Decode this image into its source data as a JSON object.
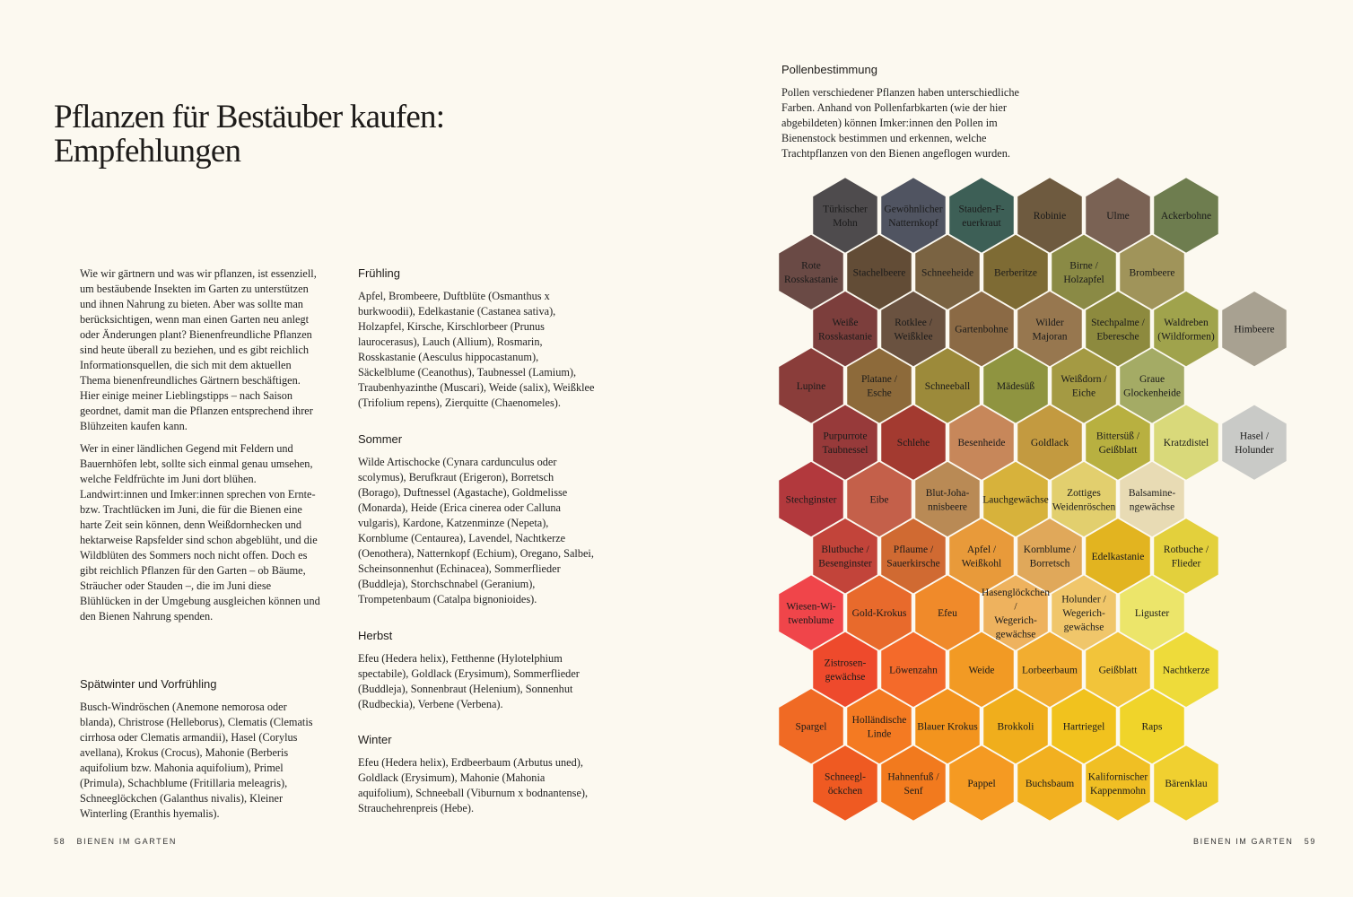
{
  "left_page": {
    "title": "Pflanzen für Bestäuber kaufen:\nEmpfehlungen",
    "intro_paragraphs": [
      "Wie wir gärtnern und was wir pflanzen, ist essenziell, um bestäubende Insekten im Garten zu unterstützen und ihnen Nahrung zu bieten. Aber was sollte man berücksichtigen, wenn man einen Garten neu anlegt oder Änderungen plant? Bienenfreundliche Pflanzen sind heute überall zu beziehen, und es gibt reichlich Informationsquellen, die sich mit dem aktuellen Thema bienenfreundliches Gärtnern beschäftigen. Hier einige meiner Lieblingstipps – nach Saison geordnet, damit man die Pflanzen entsprechend ihrer Blühzeiten kaufen kann.",
      "Wer in einer ländlichen Gegend mit Feldern und Bauernhöfen lebt, sollte sich einmal genau umsehen, welche Feldfrüchte im Juni dort blühen. Landwirt:innen und Imker:innen sprechen von Ernte- bzw. Trachtlücken im Juni, die für die Bienen eine harte Zeit sein können, denn Weißdornhecken und hektarweise Rapsfelder sind schon abgeblüht, und die Wildblüten des Sommers noch nicht offen. Doch es gibt reichlich Pflanzen für den Garten – ob Bäume, Sträucher oder Stauden –, die im Juni diese Blühlücken in der Umgebung ausgleichen können und den Bienen Nahrung spenden."
    ],
    "seasons": {
      "late_winter": {
        "heading": "Spätwinter und Vorfrühling",
        "text": "Busch-Windröschen (Anemone nemorosa oder blanda), Christrose (Helleborus), Clematis (Clematis cirrhosa oder Clematis armandii), Hasel (Corylus avellana), Krokus (Crocus), Mahonie (Berberis aquifolium bzw. Mahonia aquifolium), Primel (Primula), Schachblume (Fritillaria meleagris), Schneeglöckchen (Galanthus nivalis), Kleiner Winterling (Eranthis hyemalis)."
      },
      "spring": {
        "heading": "Frühling",
        "text": "Apfel, Brombeere, Duftblüte (Osmanthus x burkwoodii), Edelkastanie (Castanea sativa), Holzapfel, Kirsche, Kirschlorbeer (Prunus laurocerasus), Lauch (Allium), Rosmarin, Rosskastanie (Aesculus hippocastanum), Säckelblume (Ceanothus), Taubnessel (Lamium), Traubenhyazinthe (Muscari), Weide (salix), Weißklee (Trifolium repens), Zierquitte (Chaenomeles)."
      },
      "summer": {
        "heading": "Sommer",
        "text": "Wilde Artischocke (Cynara cardunculus oder scolymus), Berufkraut (Erigeron), Borretsch (Borago), Duftnessel (Agastache), Goldmelisse (Monarda), Heide (Erica cinerea oder Calluna vulgaris), Kardone, Katzenminze (Nepeta), Kornblume (Centaurea), Lavendel, Nachtkerze (Oenothera), Natternkopf (Echium), Oregano, Salbei, Scheinsonnenhut (Echinacea), Sommerflieder (Buddleja), Storchschnabel (Geranium), Trompetenbaum (Catalpa bignonioides)."
      },
      "autumn": {
        "heading": "Herbst",
        "text": "Efeu (Hedera helix), Fetthenne (Hylotelphium spectabile), Goldlack (Erysimum), Sommerflieder (Buddleja), Sonnenbraut (Helenium), Sonnenhut (Rudbeckia), Verbene (Verbena)."
      },
      "winter": {
        "heading": "Winter",
        "text": "Efeu (Hedera helix), Erdbeerbaum (Arbutus uned), Goldlack (Erysimum), Mahonie (Mahonia aquifolium), Schneeball (Viburnum x bodnantense), Strauchehrenpreis (Hebe)."
      }
    },
    "footer_number": "58",
    "footer_label": "BIENEN IM GARTEN"
  },
  "right_page": {
    "heading": "Pollenbestimmung",
    "text": "Pollen verschiedener Pflanzen haben unterschiedliche Farben. Anhand von Pollenfarbkarten (wie der hier abgebildeten) können Imker:innen den Pollen im Bienenstock bestimmen und erkennen, welche Trachtpflanzen von den Bienen angeflogen wurden.",
    "footer_label": "BIENEN IM GARTEN",
    "footer_number": "59",
    "hex_rows": [
      {
        "indent": 1,
        "cells": [
          {
            "label": "Türkischer Mohn",
            "color": "#4e4b4d",
            "text_color": "#1a1a1a"
          },
          {
            "label": "Gewöhnlicher Natternkopf",
            "color": "#505461",
            "text_color": "#1a1a1a"
          },
          {
            "label": "Stauden-Feuerkraut",
            "color": "#3d5f56",
            "text_color": "#1a1a1a"
          },
          {
            "label": "Robinie",
            "color": "#6e5a3f",
            "text_color": "#1a1a1a"
          },
          {
            "label": "Ulme",
            "color": "#7a6254",
            "text_color": "#1a1a1a"
          },
          {
            "label": "Ackerbohne",
            "color": "#6e7d4f",
            "text_color": "#1a1a1a"
          }
        ]
      },
      {
        "indent": 0,
        "cells": [
          {
            "label": "Rote Rosskastanie",
            "color": "#6a4a45",
            "text_color": "#1a1a1a"
          },
          {
            "label": "Stachelbeere",
            "color": "#624c36",
            "text_color": "#1a1a1a"
          },
          {
            "label": "Schneeheide",
            "color": "#7a6342",
            "text_color": "#1a1a1a"
          },
          {
            "label": "Berberitze",
            "color": "#7e6b34",
            "text_color": "#1a1a1a"
          },
          {
            "label": "Birne / Holzapfel",
            "color": "#8a8a45",
            "text_color": "#1a1a1a"
          },
          {
            "label": "Brombeere",
            "color": "#a0945a",
            "text_color": "#1a1a1a"
          }
        ]
      },
      {
        "indent": 1,
        "cells": [
          {
            "label": "Weiße Rosskastanie",
            "color": "#7c3e3c",
            "text_color": "#1a1a1a"
          },
          {
            "label": "Rotklee / Weißklee",
            "color": "#6a5240",
            "text_color": "#1a1a1a"
          },
          {
            "label": "Gartenbohne",
            "color": "#8b6a45",
            "text_color": "#1a1a1a"
          },
          {
            "label": "Wilder Majoran",
            "color": "#97774f",
            "text_color": "#1a1a1a"
          },
          {
            "label": "Stechpalme / Eberesche",
            "color": "#8d8a3e",
            "text_color": "#1a1a1a"
          },
          {
            "label": "Waldreben (Wildformen)",
            "color": "#a0a34c",
            "text_color": "#1a1a1a"
          },
          {
            "label": "Himbeere",
            "color": "#a8a191",
            "text_color": "#1a1a1a"
          }
        ]
      },
      {
        "indent": 0,
        "cells": [
          {
            "label": "Lupine",
            "color": "#8a3d3a",
            "text_color": "#1a1a1a"
          },
          {
            "label": "Platane / Esche",
            "color": "#8d6a3a",
            "text_color": "#1a1a1a"
          },
          {
            "label": "Schneeball",
            "color": "#9c8a3a",
            "text_color": "#1a1a1a"
          },
          {
            "label": "Mädesüß",
            "color": "#8f9440",
            "text_color": "#1a1a1a"
          },
          {
            "label": "Weißdorn / Eiche",
            "color": "#a49a43",
            "text_color": "#1a1a1a"
          },
          {
            "label": "Graue Glockenheide",
            "color": "#a4ab65",
            "text_color": "#1a1a1a"
          }
        ]
      },
      {
        "indent": 1,
        "cells": [
          {
            "label": "Purpurrote Taubnessel",
            "color": "#973a3a",
            "text_color": "#1a1a1a"
          },
          {
            "label": "Schlehe",
            "color": "#a33a30",
            "text_color": "#1a1a1a"
          },
          {
            "label": "Besenheide",
            "color": "#c7875a",
            "text_color": "#1a1a1a"
          },
          {
            "label": "Goldlack",
            "color": "#c39a40",
            "text_color": "#1a1a1a"
          },
          {
            "label": "Bittersüß / Geißblatt",
            "color": "#b8b040",
            "text_color": "#1a1a1a"
          },
          {
            "label": "Kratzdistel",
            "color": "#d9d97a",
            "text_color": "#1a1a1a"
          },
          {
            "label": "Hasel / Holunder",
            "color": "#c9cac7",
            "text_color": "#1a1a1a"
          }
        ]
      },
      {
        "indent": 0,
        "cells": [
          {
            "label": "Stechginster",
            "color": "#b2393d",
            "text_color": "#1a1a1a"
          },
          {
            "label": "Eibe",
            "color": "#c4604a",
            "text_color": "#1a1a1a"
          },
          {
            "label": "Blut-Johannisbeere",
            "color": "#b98a55",
            "text_color": "#1a1a1a"
          },
          {
            "label": "Lauchgewächse",
            "color": "#d7b23b",
            "text_color": "#1a1a1a"
          },
          {
            "label": "Zottiges Weidenröschen",
            "color": "#e2cf6e",
            "text_color": "#1a1a1a"
          },
          {
            "label": "Balsaminengewächse",
            "color": "#e8dbb4",
            "text_color": "#1a1a1a"
          }
        ]
      },
      {
        "indent": 1,
        "cells": [
          {
            "label": "Blutbuche / Besenginster",
            "color": "#c2443a",
            "text_color": "#1a1a1a"
          },
          {
            "label": "Pflaume / Sauerkirsche",
            "color": "#d06a32",
            "text_color": "#1a1a1a"
          },
          {
            "label": "Apfel / Weißkohl",
            "color": "#e89a3a",
            "text_color": "#1a1a1a"
          },
          {
            "label": "Kornblume / Borretsch",
            "color": "#e0a85a",
            "text_color": "#1a1a1a"
          },
          {
            "label": "Edelkastanie",
            "color": "#e2b420",
            "text_color": "#1a1a1a"
          },
          {
            "label": "Rotbuche / Flieder",
            "color": "#e3d03c",
            "text_color": "#1a1a1a"
          }
        ]
      },
      {
        "indent": 0,
        "cells": [
          {
            "label": "Wiesen-Witwenblume",
            "color": "#f0454a",
            "text_color": "#1a1a1a"
          },
          {
            "label": "Gold-Krokus",
            "color": "#e86a2c",
            "text_color": "#1a1a1a"
          },
          {
            "label": "Efeu",
            "color": "#f08a2a",
            "text_color": "#1a1a1a"
          },
          {
            "label": "Hasenglöckchen / Wegerichgewächse",
            "color": "#eeb25e",
            "text_color": "#1a1a1a"
          },
          {
            "label": "Holunder / Wegerichgewächse",
            "color": "#f0c66a",
            "text_color": "#1a1a1a"
          },
          {
            "label": "Liguster",
            "color": "#ece56a",
            "text_color": "#1a1a1a"
          }
        ]
      },
      {
        "indent": 1,
        "cells": [
          {
            "label": "Zistrosengewächse",
            "color": "#ee4a2c",
            "text_color": "#1a1a1a"
          },
          {
            "label": "Löwenzahn",
            "color": "#f46a2a",
            "text_color": "#1a1a1a"
          },
          {
            "label": "Weide",
            "color": "#f29a24",
            "text_color": "#1a1a1a"
          },
          {
            "label": "Lorbeerbaum",
            "color": "#f2ad30",
            "text_color": "#1a1a1a"
          },
          {
            "label": "Geißblatt",
            "color": "#f2c43a",
            "text_color": "#1a1a1a"
          },
          {
            "label": "Nachtkerze",
            "color": "#eedb3a",
            "text_color": "#1a1a1a"
          }
        ]
      },
      {
        "indent": 0,
        "cells": [
          {
            "label": "Spargel",
            "color": "#f06a24",
            "text_color": "#1a1a1a"
          },
          {
            "label": "Holländische Linde",
            "color": "#f47a22",
            "text_color": "#1a1a1a"
          },
          {
            "label": "Blauer Krokus",
            "color": "#f3941e",
            "text_color": "#1a1a1a"
          },
          {
            "label": "Brokkoli",
            "color": "#f0ae1c",
            "text_color": "#1a1a1a"
          },
          {
            "label": "Hartriegel",
            "color": "#f1c21e",
            "text_color": "#1a1a1a"
          },
          {
            "label": "Raps",
            "color": "#f0d42a",
            "text_color": "#1a1a1a"
          }
        ]
      },
      {
        "indent": 1,
        "cells": [
          {
            "label": "Schneeglöckchen",
            "color": "#ef5a22",
            "text_color": "#1a1a1a"
          },
          {
            "label": "Hahnenfuß / Senf",
            "color": "#f27a1e",
            "text_color": "#1a1a1a"
          },
          {
            "label": "Pappel",
            "color": "#f59a22",
            "text_color": "#1a1a1a"
          },
          {
            "label": "Buchsbaum",
            "color": "#f2b020",
            "text_color": "#1a1a1a"
          },
          {
            "label": "Kalifornischer Kappenmohn",
            "color": "#f0bf24",
            "text_color": "#1a1a1a"
          },
          {
            "label": "Bärenklau",
            "color": "#f0d030",
            "text_color": "#1a1a1a"
          }
        ]
      }
    ]
  }
}
